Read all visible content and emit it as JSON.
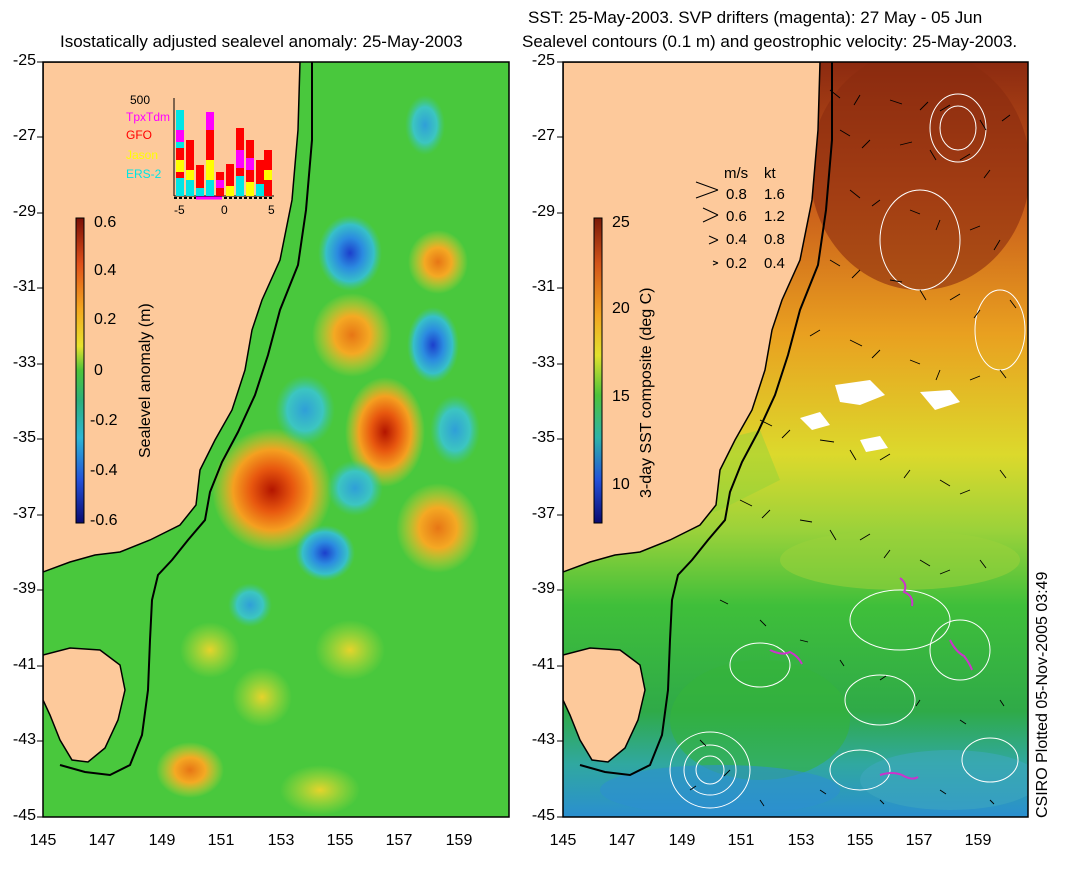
{
  "left_panel": {
    "title": "Isostatically adjusted sealevel anomaly: 25-May-2003",
    "y_ticks": [
      "-25",
      "-27",
      "-29",
      "-31",
      "-33",
      "-35",
      "-37",
      "-39",
      "-41",
      "-43",
      "-45"
    ],
    "x_ticks": [
      "145",
      "147",
      "149",
      "151",
      "153",
      "155",
      "157",
      "159"
    ],
    "colorbar": {
      "label": "Sealevel anomaly (m)",
      "ticks": [
        "0.6",
        "0.4",
        "0.2",
        "0",
        "-0.2",
        "-0.4",
        "-0.6"
      ],
      "range": [
        -0.6,
        0.6
      ]
    },
    "satellite_legend": {
      "scale_label": "500",
      "entries": [
        {
          "name": "TpxTdm",
          "color": "#ff00ff"
        },
        {
          "name": "GFO",
          "color": "#ff0000"
        },
        {
          "name": "Jason",
          "color": "#ffff00"
        },
        {
          "name": "ERS-2",
          "color": "#00e5e5"
        }
      ],
      "x_ticks": [
        "-5",
        "0",
        "5"
      ]
    }
  },
  "right_panel": {
    "title_line1": "SST: 25-May-2003. SVP drifters (magenta): 27 May - 05 Jun",
    "title_line2": "Sealevel contours (0.1 m) and geostrophic velocity: 25-May-2003.",
    "y_ticks": [
      "-25",
      "-27",
      "-29",
      "-31",
      "-33",
      "-35",
      "-37",
      "-39",
      "-41",
      "-43",
      "-45"
    ],
    "x_ticks": [
      "145",
      "147",
      "149",
      "151",
      "153",
      "155",
      "157",
      "159"
    ],
    "colorbar": {
      "label": "3-day SST composite (deg C)",
      "ticks": [
        "25",
        "20",
        "15",
        "10"
      ],
      "range": [
        8,
        25
      ]
    },
    "velocity_legend": {
      "header_ms": "m/s",
      "header_kt": "kt",
      "rows": [
        {
          "ms": "0.8",
          "kt": "1.6"
        },
        {
          "ms": "0.6",
          "kt": "1.2"
        },
        {
          "ms": "0.4",
          "kt": "0.8"
        },
        {
          "ms": "0.2",
          "kt": "0.4"
        }
      ]
    }
  },
  "footer": {
    "credit": "CSIRO Plotted 05-Nov-2005 03:49"
  },
  "colors": {
    "land": "#fdc99b",
    "coast": "#000000",
    "drifters": "#cc33cc"
  }
}
